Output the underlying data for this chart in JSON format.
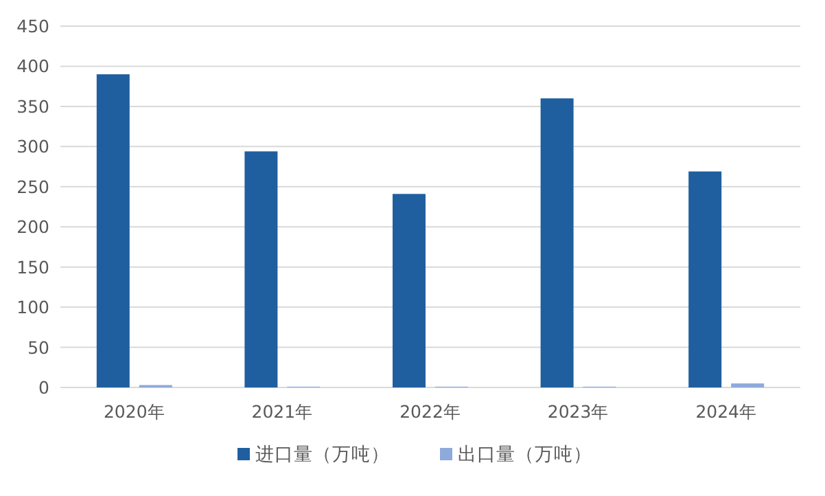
{
  "chart_data": {
    "type": "bar",
    "categories": [
      "2020年",
      "2021年",
      "2022年",
      "2023年",
      "2024年"
    ],
    "series": [
      {
        "name": "进口量（万吨）",
        "color": "#1f5fa0",
        "values": [
          390,
          294,
          241,
          360,
          269
        ]
      },
      {
        "name": "出口量（万吨）",
        "color": "#8eaadb",
        "values": [
          3,
          1,
          1,
          1,
          5
        ]
      }
    ],
    "ylim": [
      0,
      450
    ],
    "yticks": [
      0,
      50,
      100,
      150,
      200,
      250,
      300,
      350,
      400,
      450
    ],
    "grid": "y",
    "legend": "bottom"
  }
}
